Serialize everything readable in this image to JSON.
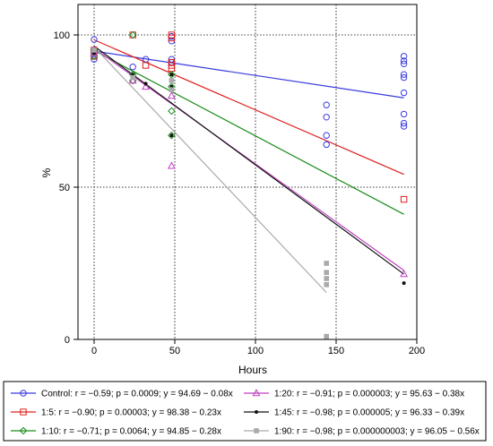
{
  "chart_data": {
    "type": "scatter",
    "xlabel": "Hours",
    "ylabel": "%",
    "xlim": [
      -10,
      200
    ],
    "ylim": [
      0,
      110
    ],
    "xticks": [
      0,
      50,
      100,
      150,
      200
    ],
    "yticks": [
      0,
      50,
      100
    ],
    "grid": true,
    "legend_position": "bottom",
    "series": [
      {
        "name": "Control",
        "legend": "Control: r = −0.59; p = 0.0009; y = 94.69 − 0.08x",
        "color": "#3a3ae0",
        "marker": "circle",
        "points": [
          [
            0,
            98.5
          ],
          [
            0,
            95
          ],
          [
            0,
            94
          ],
          [
            0,
            93
          ],
          [
            0,
            92
          ],
          [
            24,
            89.5
          ],
          [
            32,
            92
          ],
          [
            48,
            99.5
          ],
          [
            48,
            98
          ],
          [
            48,
            92
          ],
          [
            48,
            91
          ],
          [
            144,
            77
          ],
          [
            144,
            73
          ],
          [
            144,
            67
          ],
          [
            144,
            64
          ],
          [
            192,
            93
          ],
          [
            192,
            91.5
          ],
          [
            192,
            90.5
          ],
          [
            192,
            87
          ],
          [
            192,
            86
          ],
          [
            192,
            81
          ],
          [
            192,
            74
          ],
          [
            192,
            71
          ],
          [
            192,
            70
          ]
        ],
        "fit": {
          "intercept": 94.69,
          "slope": -0.08,
          "x_end": 192
        }
      },
      {
        "name": "1:5",
        "legend": "1:5: r = −0.90; p = 0.00003; y = 98.38 − 0.23x",
        "color": "#e02020",
        "marker": "square",
        "points": [
          [
            0,
            95
          ],
          [
            0,
            93
          ],
          [
            24,
            100
          ],
          [
            32,
            90
          ],
          [
            48,
            100
          ],
          [
            48,
            99
          ],
          [
            48,
            91
          ],
          [
            48,
            90
          ],
          [
            48,
            89
          ],
          [
            192,
            46
          ]
        ],
        "fit": {
          "intercept": 98.38,
          "slope": -0.23,
          "x_end": 192
        }
      },
      {
        "name": "1:10",
        "legend": "1:10: r = −0.71; p = 0.0064; y = 94.85 − 0.28x",
        "color": "#1a8c1a",
        "marker": "diamond",
        "points": [
          [
            0,
            95
          ],
          [
            0,
            93
          ],
          [
            24,
            100
          ],
          [
            24,
            87
          ],
          [
            24,
            85
          ],
          [
            48,
            87
          ],
          [
            48,
            83
          ],
          [
            48,
            75
          ],
          [
            48,
            67
          ]
        ],
        "fit": {
          "intercept": 94.85,
          "slope": -0.28,
          "x_end": 192
        }
      },
      {
        "name": "1:20",
        "legend": "1:20: r = −0.91; p = 0.000003; y = 95.63 − 0.38x",
        "color": "#c040c0",
        "marker": "triangle",
        "points": [
          [
            0,
            95
          ],
          [
            0,
            94
          ],
          [
            24,
            85
          ],
          [
            32,
            83
          ],
          [
            48,
            80
          ],
          [
            48,
            57
          ],
          [
            192,
            21.5
          ]
        ],
        "fit": {
          "intercept": 95.63,
          "slope": -0.38,
          "x_end": 192
        }
      },
      {
        "name": "1:45",
        "legend": "1:45: r = −0.98; p = 0.000005; y = 96.33 − 0.39x",
        "color": "#111111",
        "marker": "dot",
        "points": [
          [
            0,
            95
          ],
          [
            0,
            94
          ],
          [
            24,
            87
          ],
          [
            32,
            84
          ],
          [
            48,
            87
          ],
          [
            48,
            83
          ],
          [
            48,
            67
          ],
          [
            192,
            18.5
          ]
        ],
        "fit": {
          "intercept": 96.33,
          "slope": -0.39,
          "x_end": 192
        }
      },
      {
        "name": "1:90",
        "legend": "1:90: r = −0.98; p = 0.000000003; y = 96.05 − 0.56x",
        "color": "#aaaaaa",
        "marker": "filled-square",
        "points": [
          [
            0,
            95
          ],
          [
            24,
            86
          ],
          [
            48,
            85
          ],
          [
            48,
            82
          ],
          [
            144,
            25
          ],
          [
            144,
            22
          ],
          [
            144,
            20
          ],
          [
            144,
            18
          ],
          [
            144,
            1
          ]
        ],
        "fit": {
          "intercept": 96.05,
          "slope": -0.56,
          "x_end": 144
        }
      }
    ]
  }
}
